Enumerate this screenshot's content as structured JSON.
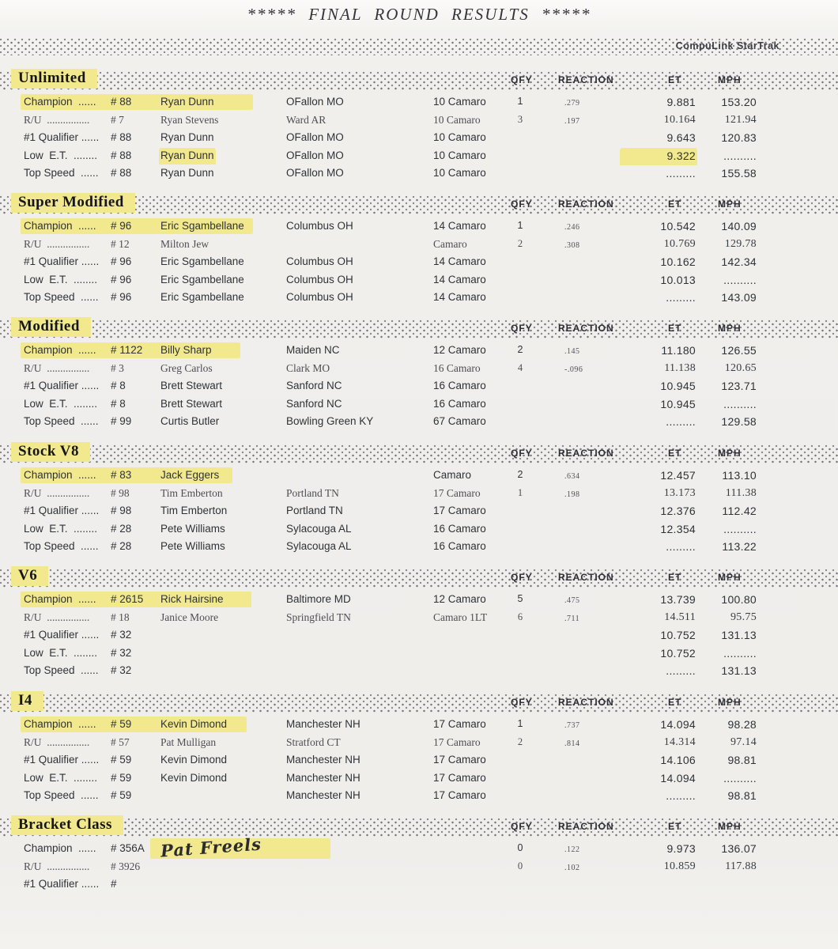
{
  "page": {
    "title": "*****   FINAL ROUND RESULTS   *****",
    "brand": "CompuLink StarTrak"
  },
  "columns": {
    "qfy": "QFY",
    "reaction": "REACTION",
    "et": "ET",
    "mph": "MPH"
  },
  "colors": {
    "highlight": "#f2e98e",
    "paper": "#efeeeb",
    "ink": "#2e3237"
  },
  "sections": [
    {
      "name": "Unlimited",
      "rows": [
        {
          "label": "Champion  ......",
          "num": "# 88",
          "name": "Ryan Dunn",
          "city": "OFallon MO",
          "car": "10 Camaro",
          "qfy": "1",
          "reaction": ".279",
          "et": "9.881",
          "mph": "153.20",
          "hlw": 294
        },
        {
          "label": "R/U  ................",
          "num": "# 7",
          "name": "Ryan Stevens",
          "city": "Ward AR",
          "car": "10 Camaro",
          "qfy": "3",
          "reaction": ".197",
          "et": "10.164",
          "mph": "121.94",
          "ru": true
        },
        {
          "label": "#1 Qualifier ......",
          "num": "# 88",
          "name": "Ryan Dunn",
          "city": "OFallon MO",
          "car": "10 Camaro",
          "et": "9.643",
          "mph": "120.83"
        },
        {
          "label": "Low  E.T.  ........",
          "num": "# 88",
          "name": "Ryan Dunn",
          "city": "OFallon MO",
          "car": "10 Camaro",
          "et": "9.322",
          "mph": "..........",
          "hl_name": true,
          "hl_et": true
        },
        {
          "label": "Top Speed  ......",
          "num": "# 88",
          "name": "Ryan Dunn",
          "city": "OFallon MO",
          "car": "10 Camaro",
          "et": ".........",
          "mph": "155.58"
        }
      ]
    },
    {
      "name": "Super Modified",
      "rows": [
        {
          "label": "Champion  ......",
          "num": "# 96",
          "name": "Eric Sgambellane",
          "city": "Columbus OH",
          "car": "14 Camaro",
          "qfy": "1",
          "reaction": ".246",
          "et": "10.542",
          "mph": "140.09",
          "hlw": 294
        },
        {
          "label": "R/U  ................",
          "num": "# 12",
          "name": "Milton Jew",
          "car": "Camaro",
          "qfy": "2",
          "reaction": ".308",
          "et": "10.769",
          "mph": "129.78",
          "ru": true
        },
        {
          "label": "#1 Qualifier ......",
          "num": "# 96",
          "name": "Eric Sgambellane",
          "city": "Columbus OH",
          "car": "14 Camaro",
          "et": "10.162",
          "mph": "142.34"
        },
        {
          "label": "Low  E.T.  ........",
          "num": "# 96",
          "name": "Eric Sgambellane",
          "city": "Columbus OH",
          "car": "14 Camaro",
          "et": "10.013",
          "mph": ".........."
        },
        {
          "label": "Top Speed  ......",
          "num": "# 96",
          "name": "Eric Sgambellane",
          "city": "Columbus OH",
          "car": "14 Camaro",
          "et": ".........",
          "mph": "143.09"
        }
      ]
    },
    {
      "name": "Modified",
      "rows": [
        {
          "label": "Champion  ......",
          "num": "# 1122",
          "name": "Billy Sharp",
          "city": "Maiden NC",
          "car": "12 Camaro",
          "qfy": "2",
          "reaction": ".145",
          "et": "11.180",
          "mph": "126.55",
          "hlw": 278
        },
        {
          "label": "R/U  ................",
          "num": "# 3",
          "name": "Greg Carlos",
          "city": "Clark MO",
          "car": "16 Camaro",
          "qfy": "4",
          "reaction": "-.096",
          "et": "11.138",
          "mph": "120.65",
          "ru": true
        },
        {
          "label": "#1 Qualifier ......",
          "num": "# 8",
          "name": "Brett Stewart",
          "city": "Sanford NC",
          "car": "16 Camaro",
          "et": "10.945",
          "mph": "123.71"
        },
        {
          "label": "Low  E.T.  ........",
          "num": "# 8",
          "name": "Brett Stewart",
          "city": "Sanford NC",
          "car": "16 Camaro",
          "et": "10.945",
          "mph": ".........."
        },
        {
          "label": "Top Speed  ......",
          "num": "# 99",
          "name": "Curtis Butler",
          "city": "Bowling Green KY",
          "car": "67 Camaro",
          "et": ".........",
          "mph": "129.58"
        }
      ]
    },
    {
      "name": "Stock V8",
      "rows": [
        {
          "label": "Champion  ......",
          "num": "# 83",
          "name": "Jack Eggers",
          "car": "Camaro",
          "qfy": "2",
          "reaction": ".634",
          "et": "12.457",
          "mph": "113.10",
          "hlw": 268
        },
        {
          "label": "R/U  ................",
          "num": "# 98",
          "name": "Tim Emberton",
          "city": "Portland TN",
          "car": "17 Camaro",
          "qfy": "1",
          "reaction": ".198",
          "et": "13.173",
          "mph": "111.38",
          "ru": true
        },
        {
          "label": "#1 Qualifier ......",
          "num": "# 98",
          "name": "Tim Emberton",
          "city": "Portland TN",
          "car": "17 Camaro",
          "et": "12.376",
          "mph": "112.42"
        },
        {
          "label": "Low  E.T.  ........",
          "num": "# 28",
          "name": "Pete Williams",
          "city": "Sylacouga AL",
          "car": "16 Camaro",
          "et": "12.354",
          "mph": ".........."
        },
        {
          "label": "Top Speed  ......",
          "num": "# 28",
          "name": "Pete Williams",
          "city": "Sylacouga AL",
          "car": "16 Camaro",
          "et": ".........",
          "mph": "113.22"
        }
      ]
    },
    {
      "name": "V6",
      "rows": [
        {
          "label": "Champion  ......",
          "num": "# 2615",
          "name": "Rick Hairsine",
          "city": "Baltimore MD",
          "car": "12 Camaro",
          "qfy": "5",
          "reaction": ".475",
          "et": "13.739",
          "mph": "100.80",
          "hlw": 292
        },
        {
          "label": "R/U  ................",
          "num": "# 18",
          "name": "Janice Moore",
          "city": "Springfield TN",
          "car": "Camaro 1LT",
          "qfy": "6",
          "reaction": ".711",
          "et": "14.511",
          "mph": "95.75",
          "ru": true
        },
        {
          "label": "#1 Qualifier ......",
          "num": "# 32",
          "et": "10.752",
          "mph": "131.13"
        },
        {
          "label": "Low  E.T.  ........",
          "num": "# 32",
          "et": "10.752",
          "mph": ".........."
        },
        {
          "label": "Top Speed  ......",
          "num": "# 32",
          "et": ".........",
          "mph": "131.13"
        }
      ]
    },
    {
      "name": "I4",
      "rows": [
        {
          "label": "Champion  ......",
          "num": "# 59",
          "name": "Kevin Dimond",
          "city": "Manchester NH",
          "car": "17 Camaro",
          "qfy": "1",
          "reaction": ".737",
          "et": "14.094",
          "mph": "98.28",
          "hlw": 286
        },
        {
          "label": "R/U  ................",
          "num": "# 57",
          "name": "Pat Mulligan",
          "city": "Stratford CT",
          "car": "17 Camaro",
          "qfy": "2",
          "reaction": ".814",
          "et": "14.314",
          "mph": "97.14",
          "ru": true
        },
        {
          "label": "#1 Qualifier ......",
          "num": "# 59",
          "name": "Kevin Dimond",
          "city": "Manchester NH",
          "car": "17 Camaro",
          "et": "14.106",
          "mph": "98.81"
        },
        {
          "label": "Low  E.T.  ........",
          "num": "# 59",
          "name": "Kevin Dimond",
          "city": "Manchester NH",
          "car": "17 Camaro",
          "et": "14.094",
          "mph": ".........."
        },
        {
          "label": "Top Speed  ......",
          "num": "# 59",
          "city": "Manchester NH",
          "car": "17 Camaro",
          "et": ".........",
          "mph": "98.81"
        }
      ]
    },
    {
      "name": "Bracket Class",
      "rows": [
        {
          "label": "Champion  ......",
          "num": "# 356A",
          "name": "Pat Freels",
          "qfy": "0",
          "reaction": ".122",
          "et": "9.973",
          "mph": "136.07",
          "hand": true,
          "hlx": 190,
          "hlw": 228
        },
        {
          "label": "R/U  ................",
          "num": "# 3926",
          "qfy": "0",
          "reaction": ".102",
          "et": "10.859",
          "mph": "117.88",
          "ru": true
        },
        {
          "label": "#1 Qualifier ......",
          "num": "#"
        }
      ]
    }
  ]
}
